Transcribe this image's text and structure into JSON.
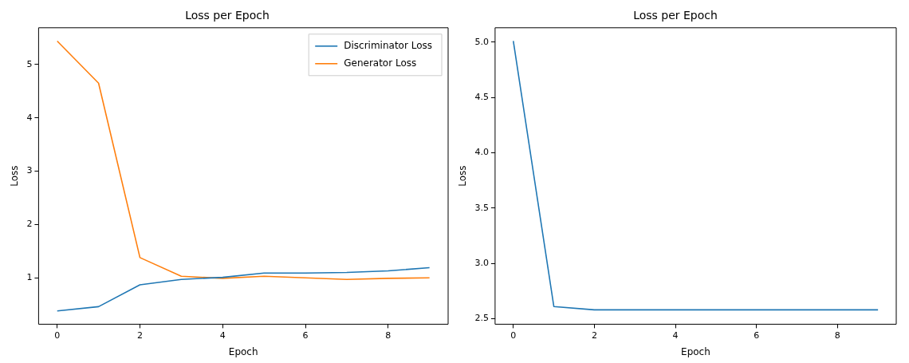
{
  "chart_data": [
    {
      "type": "line",
      "title": "Loss per Epoch",
      "xlabel": "Epoch",
      "ylabel": "Loss",
      "x": [
        0,
        1,
        2,
        3,
        4,
        5,
        6,
        7,
        8,
        9
      ],
      "series": [
        {
          "name": "Discriminator Loss",
          "color": "#1f77b4",
          "values": [
            0.38,
            0.46,
            0.87,
            0.97,
            1.01,
            1.09,
            1.09,
            1.1,
            1.13,
            1.19
          ]
        },
        {
          "name": "Generator Loss",
          "color": "#ff7f0e",
          "values": [
            5.44,
            4.65,
            1.38,
            1.03,
            0.99,
            1.03,
            1.0,
            0.97,
            0.99,
            1.0
          ]
        }
      ],
      "xlim": [
        -0.45,
        9.45
      ],
      "xticks": [
        0,
        2,
        4,
        6,
        8
      ],
      "ylim": [
        0.13,
        5.69
      ],
      "yticks": [
        1,
        2,
        3,
        4,
        5
      ],
      "grid": false,
      "legend": "top right",
      "marker": "none",
      "line_style": "solid"
    },
    {
      "type": "line",
      "title": "Loss per Epoch",
      "xlabel": "Epoch",
      "ylabel": "Loss",
      "x": [
        0,
        1,
        2,
        3,
        4,
        5,
        6,
        7,
        8,
        9
      ],
      "series": [
        {
          "color": "#1f77b4",
          "values": [
            5.01,
            2.61,
            2.58,
            2.58,
            2.58,
            2.58,
            2.58,
            2.58,
            2.58,
            2.58
          ]
        }
      ],
      "xlim": [
        -0.45,
        9.45
      ],
      "xticks": [
        0,
        2,
        4,
        6,
        8
      ],
      "ylim": [
        2.45,
        5.13
      ],
      "yticks": [
        {
          "value": 2.5,
          "label": "2.5"
        },
        {
          "value": 3,
          "label": "3.0"
        },
        {
          "value": 3.5,
          "label": "3.5"
        },
        {
          "value": 4,
          "label": "4.0"
        },
        {
          "value": 4.5,
          "label": "4.5"
        },
        {
          "value": 5,
          "label": "5.0"
        }
      ],
      "grid": false,
      "legend": false,
      "marker": "none",
      "line_style": "solid"
    }
  ]
}
